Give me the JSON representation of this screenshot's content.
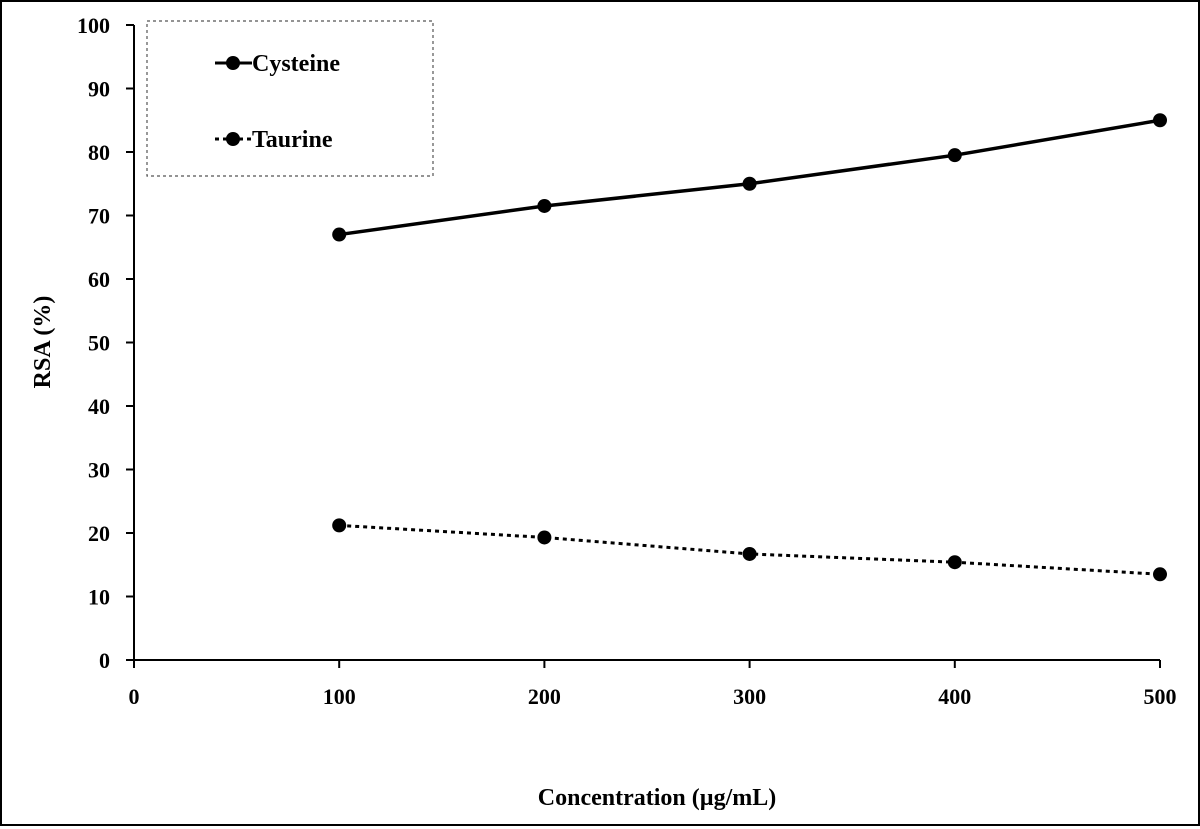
{
  "chart_data": {
    "type": "line",
    "title": "",
    "xlabel": "Concentration (µg/mL)",
    "ylabel": "RSA (%)",
    "xlim": [
      0,
      500
    ],
    "ylim": [
      0,
      100
    ],
    "xticks": [
      0,
      100,
      200,
      300,
      400,
      500
    ],
    "yticks": [
      0,
      10,
      20,
      30,
      40,
      50,
      60,
      70,
      80,
      90,
      100
    ],
    "grid": false,
    "legend_position": "top-left",
    "x": [
      100,
      200,
      300,
      400,
      500
    ],
    "series": [
      {
        "name": "Cysteine",
        "line_style": "solid",
        "color": "#000000",
        "values": [
          67.0,
          71.5,
          75.0,
          79.5,
          85.0
        ]
      },
      {
        "name": "Taurine",
        "line_style": "dotted",
        "color": "#000000",
        "values": [
          21.2,
          19.3,
          16.7,
          15.4,
          13.5
        ]
      }
    ]
  }
}
